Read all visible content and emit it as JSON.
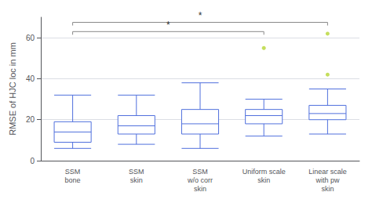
{
  "chart_data": {
    "type": "box",
    "categories": [
      "SSM\nbone",
      "SSM\nskin",
      "SSM\nw/o corr\nskin",
      "Uniform scale\nskin",
      "Linear scale\nwith pw\nskin"
    ],
    "boxes": [
      {
        "q1": 9,
        "median": 14,
        "q3": 19,
        "whisker_low": 6,
        "whisker_high": 32,
        "outliers": []
      },
      {
        "q1": 13,
        "median": 17,
        "q3": 22,
        "whisker_low": 8,
        "whisker_high": 32,
        "outliers": []
      },
      {
        "q1": 13,
        "median": 18,
        "q3": 25,
        "whisker_low": 6,
        "whisker_high": 38,
        "outliers": []
      },
      {
        "q1": 18,
        "median": 22,
        "q3": 25,
        "whisker_low": 12,
        "whisker_high": 30,
        "outliers": [
          55
        ]
      },
      {
        "q1": 20,
        "median": 23,
        "q3": 27,
        "whisker_low": 13,
        "whisker_high": 35,
        "outliers": [
          42,
          62
        ]
      }
    ],
    "ylabel": "RMSE of HJC loc in mm",
    "ylim": [
      0,
      70
    ],
    "yticks": [
      0,
      20,
      40,
      60
    ],
    "grid": true,
    "annotations": [
      {
        "text": "*",
        "from": "SSM\nbone",
        "to": "Linear scale\nwith pw\nskin",
        "y": 67.5,
        "text_y": 68.5
      },
      {
        "text": "*",
        "from": "SSM\nbone",
        "to": "Uniform scale\nskin",
        "y": 63.0,
        "text_y": 64.0
      }
    ]
  }
}
